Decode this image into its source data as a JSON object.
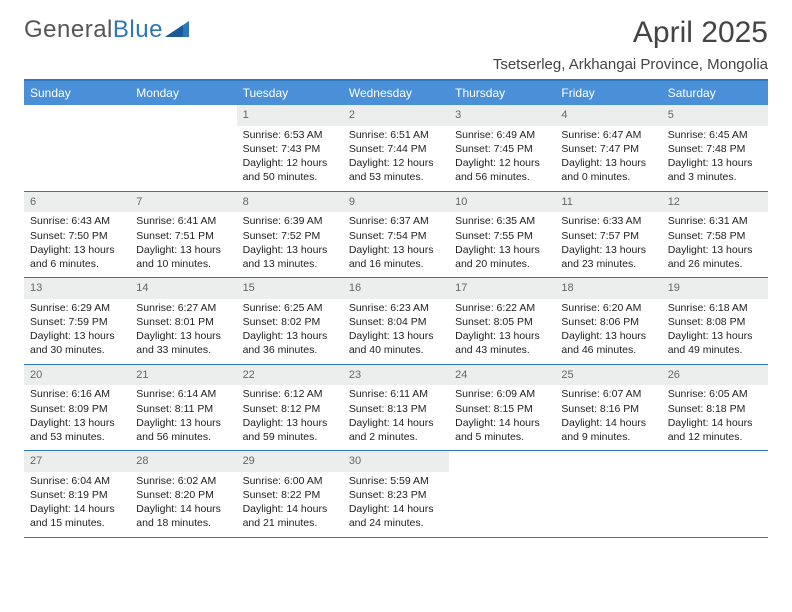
{
  "logo": {
    "text1": "General",
    "text2": "Blue"
  },
  "title": "April 2025",
  "location": "Tsetserleg, Arkhangai Province, Mongolia",
  "colors": {
    "header_bar": "#4a90d9",
    "border": "#2f77bb",
    "daynum_bg": "#eceeee",
    "daynum_fg": "#666666",
    "text": "#222222",
    "background": "#ffffff"
  },
  "day_names": [
    "Sunday",
    "Monday",
    "Tuesday",
    "Wednesday",
    "Thursday",
    "Friday",
    "Saturday"
  ],
  "weeks": [
    [
      {
        "n": "",
        "sunrise": "",
        "sunset": "",
        "daylight": ""
      },
      {
        "n": "",
        "sunrise": "",
        "sunset": "",
        "daylight": ""
      },
      {
        "n": "1",
        "sunrise": "Sunrise: 6:53 AM",
        "sunset": "Sunset: 7:43 PM",
        "daylight": "Daylight: 12 hours and 50 minutes."
      },
      {
        "n": "2",
        "sunrise": "Sunrise: 6:51 AM",
        "sunset": "Sunset: 7:44 PM",
        "daylight": "Daylight: 12 hours and 53 minutes."
      },
      {
        "n": "3",
        "sunrise": "Sunrise: 6:49 AM",
        "sunset": "Sunset: 7:45 PM",
        "daylight": "Daylight: 12 hours and 56 minutes."
      },
      {
        "n": "4",
        "sunrise": "Sunrise: 6:47 AM",
        "sunset": "Sunset: 7:47 PM",
        "daylight": "Daylight: 13 hours and 0 minutes."
      },
      {
        "n": "5",
        "sunrise": "Sunrise: 6:45 AM",
        "sunset": "Sunset: 7:48 PM",
        "daylight": "Daylight: 13 hours and 3 minutes."
      }
    ],
    [
      {
        "n": "6",
        "sunrise": "Sunrise: 6:43 AM",
        "sunset": "Sunset: 7:50 PM",
        "daylight": "Daylight: 13 hours and 6 minutes."
      },
      {
        "n": "7",
        "sunrise": "Sunrise: 6:41 AM",
        "sunset": "Sunset: 7:51 PM",
        "daylight": "Daylight: 13 hours and 10 minutes."
      },
      {
        "n": "8",
        "sunrise": "Sunrise: 6:39 AM",
        "sunset": "Sunset: 7:52 PM",
        "daylight": "Daylight: 13 hours and 13 minutes."
      },
      {
        "n": "9",
        "sunrise": "Sunrise: 6:37 AM",
        "sunset": "Sunset: 7:54 PM",
        "daylight": "Daylight: 13 hours and 16 minutes."
      },
      {
        "n": "10",
        "sunrise": "Sunrise: 6:35 AM",
        "sunset": "Sunset: 7:55 PM",
        "daylight": "Daylight: 13 hours and 20 minutes."
      },
      {
        "n": "11",
        "sunrise": "Sunrise: 6:33 AM",
        "sunset": "Sunset: 7:57 PM",
        "daylight": "Daylight: 13 hours and 23 minutes."
      },
      {
        "n": "12",
        "sunrise": "Sunrise: 6:31 AM",
        "sunset": "Sunset: 7:58 PM",
        "daylight": "Daylight: 13 hours and 26 minutes."
      }
    ],
    [
      {
        "n": "13",
        "sunrise": "Sunrise: 6:29 AM",
        "sunset": "Sunset: 7:59 PM",
        "daylight": "Daylight: 13 hours and 30 minutes."
      },
      {
        "n": "14",
        "sunrise": "Sunrise: 6:27 AM",
        "sunset": "Sunset: 8:01 PM",
        "daylight": "Daylight: 13 hours and 33 minutes."
      },
      {
        "n": "15",
        "sunrise": "Sunrise: 6:25 AM",
        "sunset": "Sunset: 8:02 PM",
        "daylight": "Daylight: 13 hours and 36 minutes."
      },
      {
        "n": "16",
        "sunrise": "Sunrise: 6:23 AM",
        "sunset": "Sunset: 8:04 PM",
        "daylight": "Daylight: 13 hours and 40 minutes."
      },
      {
        "n": "17",
        "sunrise": "Sunrise: 6:22 AM",
        "sunset": "Sunset: 8:05 PM",
        "daylight": "Daylight: 13 hours and 43 minutes."
      },
      {
        "n": "18",
        "sunrise": "Sunrise: 6:20 AM",
        "sunset": "Sunset: 8:06 PM",
        "daylight": "Daylight: 13 hours and 46 minutes."
      },
      {
        "n": "19",
        "sunrise": "Sunrise: 6:18 AM",
        "sunset": "Sunset: 8:08 PM",
        "daylight": "Daylight: 13 hours and 49 minutes."
      }
    ],
    [
      {
        "n": "20",
        "sunrise": "Sunrise: 6:16 AM",
        "sunset": "Sunset: 8:09 PM",
        "daylight": "Daylight: 13 hours and 53 minutes."
      },
      {
        "n": "21",
        "sunrise": "Sunrise: 6:14 AM",
        "sunset": "Sunset: 8:11 PM",
        "daylight": "Daylight: 13 hours and 56 minutes."
      },
      {
        "n": "22",
        "sunrise": "Sunrise: 6:12 AM",
        "sunset": "Sunset: 8:12 PM",
        "daylight": "Daylight: 13 hours and 59 minutes."
      },
      {
        "n": "23",
        "sunrise": "Sunrise: 6:11 AM",
        "sunset": "Sunset: 8:13 PM",
        "daylight": "Daylight: 14 hours and 2 minutes."
      },
      {
        "n": "24",
        "sunrise": "Sunrise: 6:09 AM",
        "sunset": "Sunset: 8:15 PM",
        "daylight": "Daylight: 14 hours and 5 minutes."
      },
      {
        "n": "25",
        "sunrise": "Sunrise: 6:07 AM",
        "sunset": "Sunset: 8:16 PM",
        "daylight": "Daylight: 14 hours and 9 minutes."
      },
      {
        "n": "26",
        "sunrise": "Sunrise: 6:05 AM",
        "sunset": "Sunset: 8:18 PM",
        "daylight": "Daylight: 14 hours and 12 minutes."
      }
    ],
    [
      {
        "n": "27",
        "sunrise": "Sunrise: 6:04 AM",
        "sunset": "Sunset: 8:19 PM",
        "daylight": "Daylight: 14 hours and 15 minutes."
      },
      {
        "n": "28",
        "sunrise": "Sunrise: 6:02 AM",
        "sunset": "Sunset: 8:20 PM",
        "daylight": "Daylight: 14 hours and 18 minutes."
      },
      {
        "n": "29",
        "sunrise": "Sunrise: 6:00 AM",
        "sunset": "Sunset: 8:22 PM",
        "daylight": "Daylight: 14 hours and 21 minutes."
      },
      {
        "n": "30",
        "sunrise": "Sunrise: 5:59 AM",
        "sunset": "Sunset: 8:23 PM",
        "daylight": "Daylight: 14 hours and 24 minutes."
      },
      {
        "n": "",
        "sunrise": "",
        "sunset": "",
        "daylight": ""
      },
      {
        "n": "",
        "sunrise": "",
        "sunset": "",
        "daylight": ""
      },
      {
        "n": "",
        "sunrise": "",
        "sunset": "",
        "daylight": ""
      }
    ]
  ]
}
